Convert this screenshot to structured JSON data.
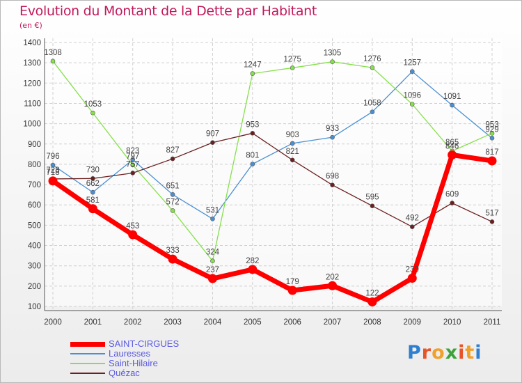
{
  "header": {
    "title": "Evolution du Montant de la Dette par Habitant",
    "unit": "(en €)"
  },
  "logo": {
    "text": "Proxiti",
    "letter_colors": [
      "#2f7fd1",
      "#e8542a",
      "#f0a12b",
      "#3ea23a",
      "#e8542a",
      "#f0a12b",
      "#2f7fd1"
    ]
  },
  "chart_data": {
    "type": "line",
    "title": "Evolution du Montant de la Dette par Habitant",
    "ylabel": "(en €)",
    "xlabel": "",
    "categories": [
      "2000",
      "2001",
      "2002",
      "2003",
      "2004",
      "2005",
      "2006",
      "2007",
      "2008",
      "2009",
      "2010",
      "2011"
    ],
    "ylim": [
      100,
      1400
    ],
    "yticks": [
      100,
      200,
      300,
      400,
      500,
      600,
      700,
      800,
      900,
      1000,
      1100,
      1200,
      1300,
      1400
    ],
    "grid": true,
    "legend_position": "bottom-left",
    "series": [
      {
        "name": "SAINT-CIRGUES",
        "color": "#ff0000",
        "line_width": 7,
        "marker_radius": 6.5,
        "values": [
          718,
          581,
          453,
          333,
          237,
          282,
          179,
          202,
          122,
          239,
          846,
          817
        ]
      },
      {
        "name": "Lauresses",
        "color": "#4a8fd4",
        "line_width": 1.3,
        "marker_radius": 3,
        "values": [
          796,
          662,
          823,
          651,
          531,
          801,
          903,
          933,
          1058,
          1257,
          1091,
          929
        ]
      },
      {
        "name": "Saint-Hilaire",
        "color": "#86e04a",
        "line_width": 1.3,
        "marker_radius": 3,
        "values": [
          1308,
          1053,
          797,
          572,
          324,
          1247,
          1275,
          1305,
          1276,
          1096,
          865,
          953
        ]
      },
      {
        "name": "Quézac",
        "color": "#6b1f1f",
        "line_width": 1.3,
        "marker_radius": 3,
        "values": [
          728,
          730,
          757,
          827,
          907,
          953,
          821,
          698,
          595,
          492,
          609,
          517
        ]
      }
    ]
  }
}
